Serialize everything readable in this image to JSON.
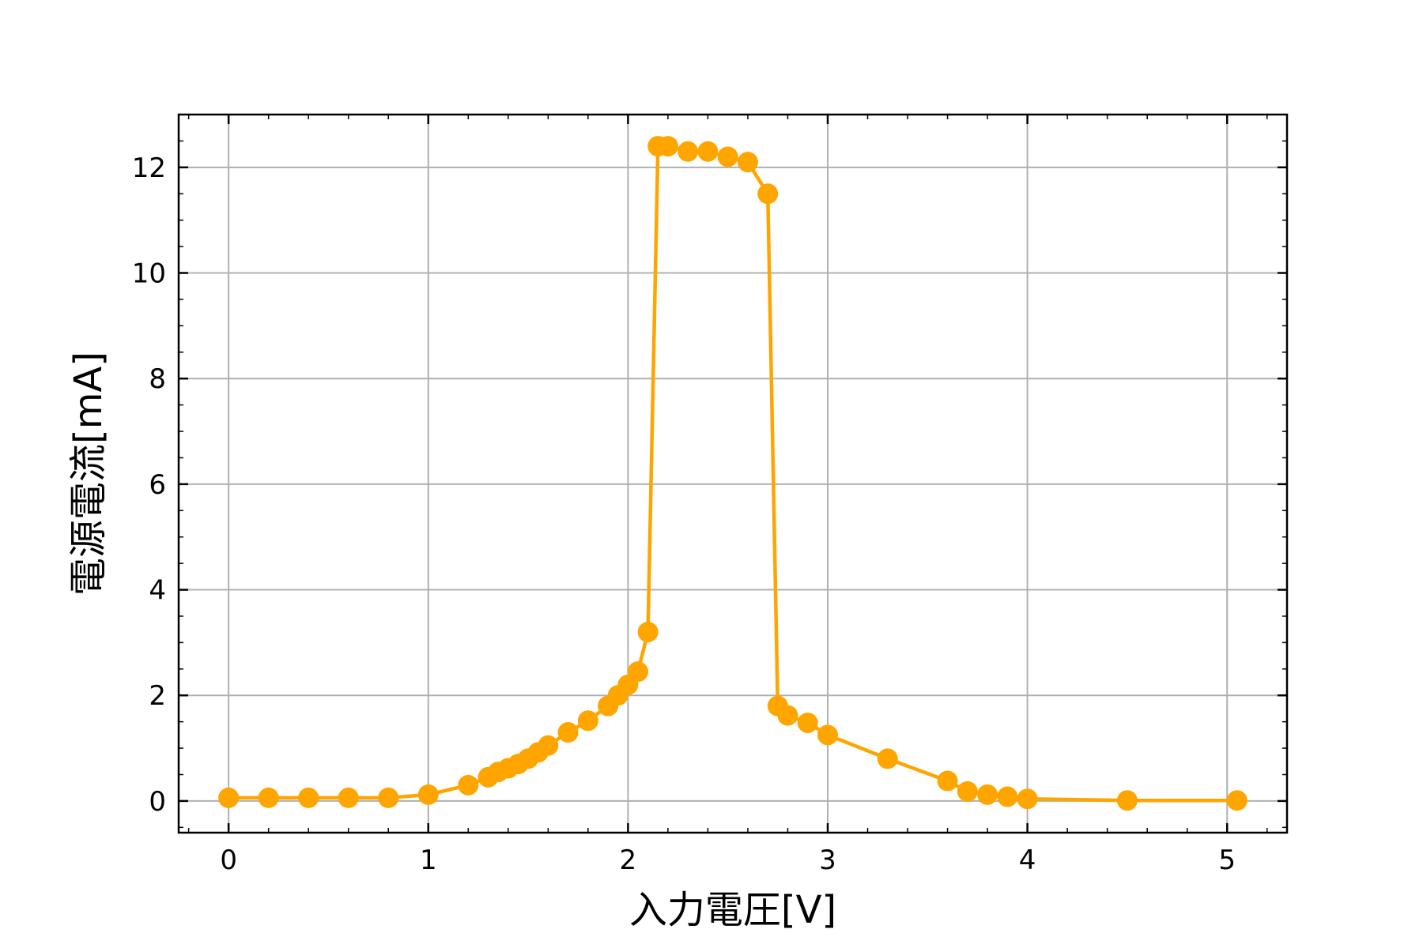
{
  "chart_data": {
    "type": "line",
    "xlabel": "入力電圧[V]",
    "ylabel": "電源電流[mA]",
    "xlim": [
      -0.25,
      5.3
    ],
    "ylim": [
      -0.6,
      13.0
    ],
    "xticks": [
      0,
      1,
      2,
      3,
      4,
      5
    ],
    "xtick_labels": [
      "0",
      "1",
      "2",
      "3",
      "4",
      "5"
    ],
    "yticks": [
      0,
      2,
      4,
      6,
      8,
      10,
      12
    ],
    "ytick_labels": [
      "0",
      "2",
      "4",
      "6",
      "8",
      "10",
      "12"
    ],
    "grid": true,
    "color": "#FFA500",
    "marker": "circle",
    "series": [
      {
        "x": [
          0.0,
          0.2,
          0.4,
          0.6,
          0.8,
          1.0,
          1.2,
          1.3,
          1.35,
          1.4,
          1.45,
          1.5,
          1.55,
          1.6,
          1.7,
          1.8,
          1.9,
          1.95,
          2.0,
          2.05,
          2.1,
          2.15,
          2.2,
          2.3,
          2.4,
          2.5,
          2.6,
          2.7,
          2.75,
          2.8,
          2.9,
          3.0,
          3.3,
          3.6,
          3.7,
          3.8,
          3.9,
          4.0,
          4.5,
          5.05
        ],
        "y": [
          0.06,
          0.06,
          0.06,
          0.06,
          0.06,
          0.12,
          0.3,
          0.45,
          0.55,
          0.62,
          0.7,
          0.8,
          0.92,
          1.05,
          1.3,
          1.52,
          1.8,
          2.0,
          2.2,
          2.45,
          3.2,
          12.4,
          12.4,
          12.3,
          12.3,
          12.2,
          12.1,
          11.5,
          1.8,
          1.62,
          1.48,
          1.25,
          0.8,
          0.38,
          0.18,
          0.12,
          0.08,
          0.04,
          0.01,
          0.01
        ]
      }
    ]
  }
}
